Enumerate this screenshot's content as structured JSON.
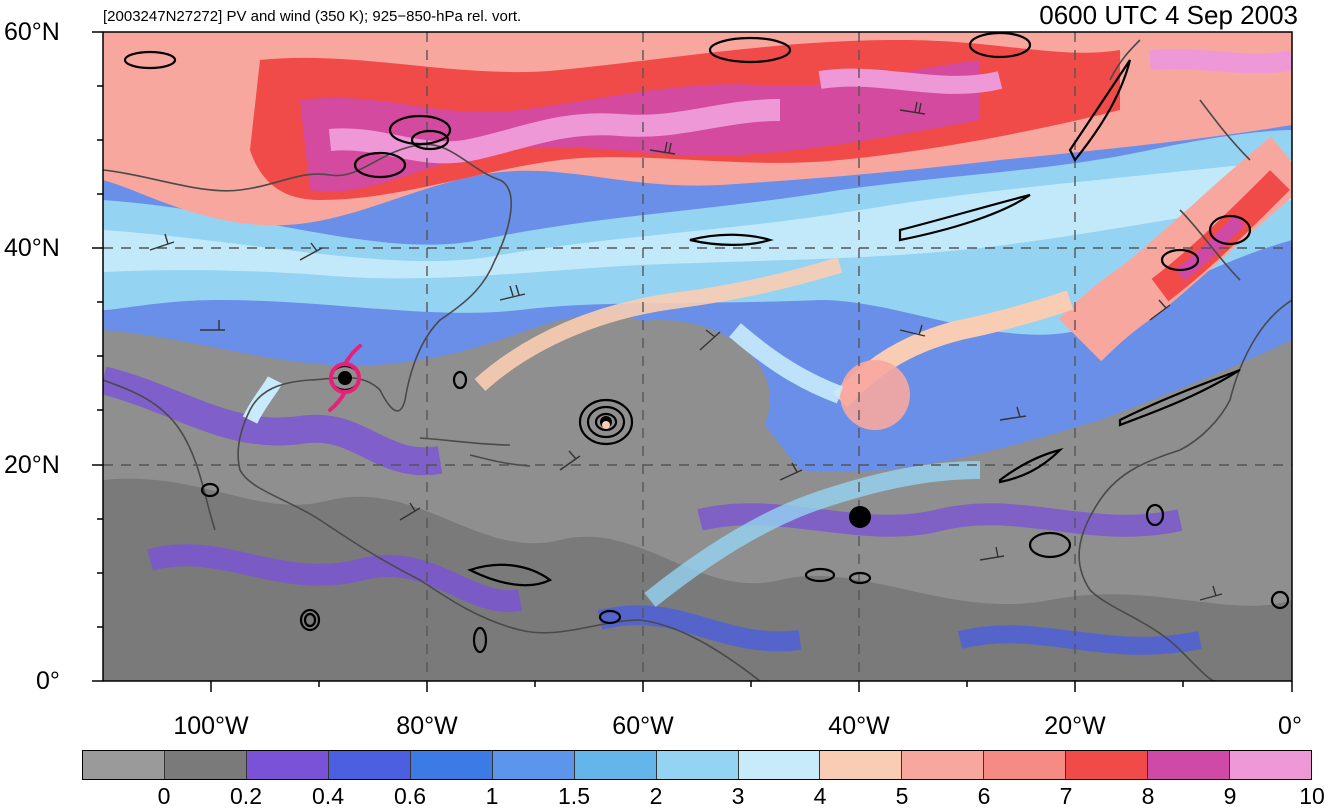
{
  "header": {
    "left_text": "[2003247N27272] PV and wind (350 K); 925−850-hPa rel. vort.",
    "right_text": "0600 UTC 4 Sep 2003"
  },
  "axes": {
    "lat_labels": [
      "60°N",
      "40°N",
      "20°N",
      "0°"
    ],
    "lon_labels": [
      "100°W",
      "80°W",
      "60°W",
      "40°W",
      "20°W",
      "0°"
    ]
  },
  "colorbar": {
    "labels": [
      "0",
      "0.2",
      "0.4",
      "0.6",
      "1",
      "1.5",
      "2",
      "3",
      "4",
      "5",
      "6",
      "7",
      "8",
      "9",
      "10"
    ],
    "colors": [
      "#9a9a9a",
      "#7a7a7a",
      "#7a52d8",
      "#4b5fe0",
      "#3c7be6",
      "#5b96ec",
      "#63b5ea",
      "#95d3f3",
      "#c7ebfb",
      "#f9cdb3",
      "#f8a79e",
      "#f68b85",
      "#f04b48",
      "#cf4aa7",
      "#ee98d8"
    ]
  },
  "palette": {
    "gray": "#8f8f8f",
    "dark_gray": "#787878",
    "purple": "#7a52d8",
    "blue": "#4b5fe0",
    "mid_blue": "#5b96ec",
    "light_blue": "#95d3f3",
    "pale_blue": "#c7ebfb",
    "peach": "#f9cdb3",
    "salmon": "#f8a79e",
    "red": "#f04b48",
    "magenta": "#cf4aa7",
    "pink": "#ee98d8",
    "storm_symbol": "#e8207a"
  },
  "symbols": {
    "storm_icon": "tropical-storm-symbol"
  }
}
